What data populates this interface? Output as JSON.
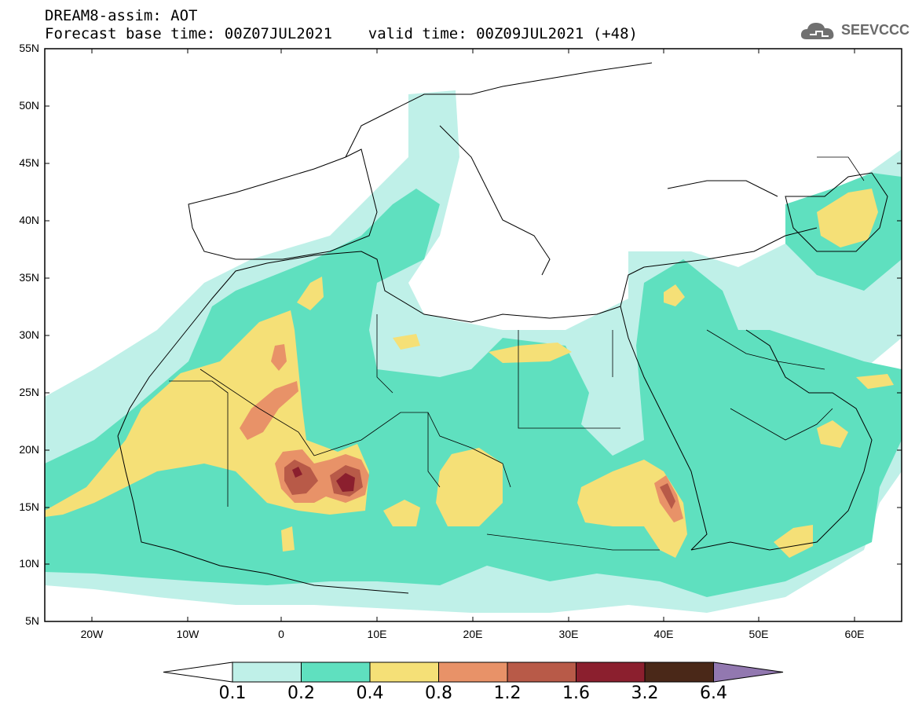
{
  "header": {
    "title_line1": "DREAM8-assim: AOT",
    "title_line2": "Forecast base time: 00Z07JUL2021    valid time: 00Z09JUL2021 (+48)",
    "logo_text": "SEEVCCC"
  },
  "map": {
    "lat_labels": [
      "55N",
      "50N",
      "45N",
      "40N",
      "35N",
      "30N",
      "25N",
      "20N",
      "15N",
      "10N",
      "5N"
    ],
    "lon_labels": [
      "20W",
      "10W",
      "0",
      "10E",
      "20E",
      "30E",
      "40E",
      "50E",
      "60E"
    ],
    "lat_range": [
      5,
      55
    ],
    "lon_range": [
      -25,
      65
    ],
    "field": "Aerosol optical thickness",
    "grid": false
  },
  "colorbar": {
    "labels": [
      "0.1",
      "0.2",
      "0.4",
      "0.8",
      "1.2",
      "1.6",
      "3.2",
      "6.4"
    ],
    "colors": [
      "#bff0e8",
      "#5fe0bf",
      "#f5e077",
      "#e89268",
      "#b85a48",
      "#8b1f2e",
      "#4a2818",
      "#9278b0"
    ],
    "under_color": "#ffffff"
  }
}
